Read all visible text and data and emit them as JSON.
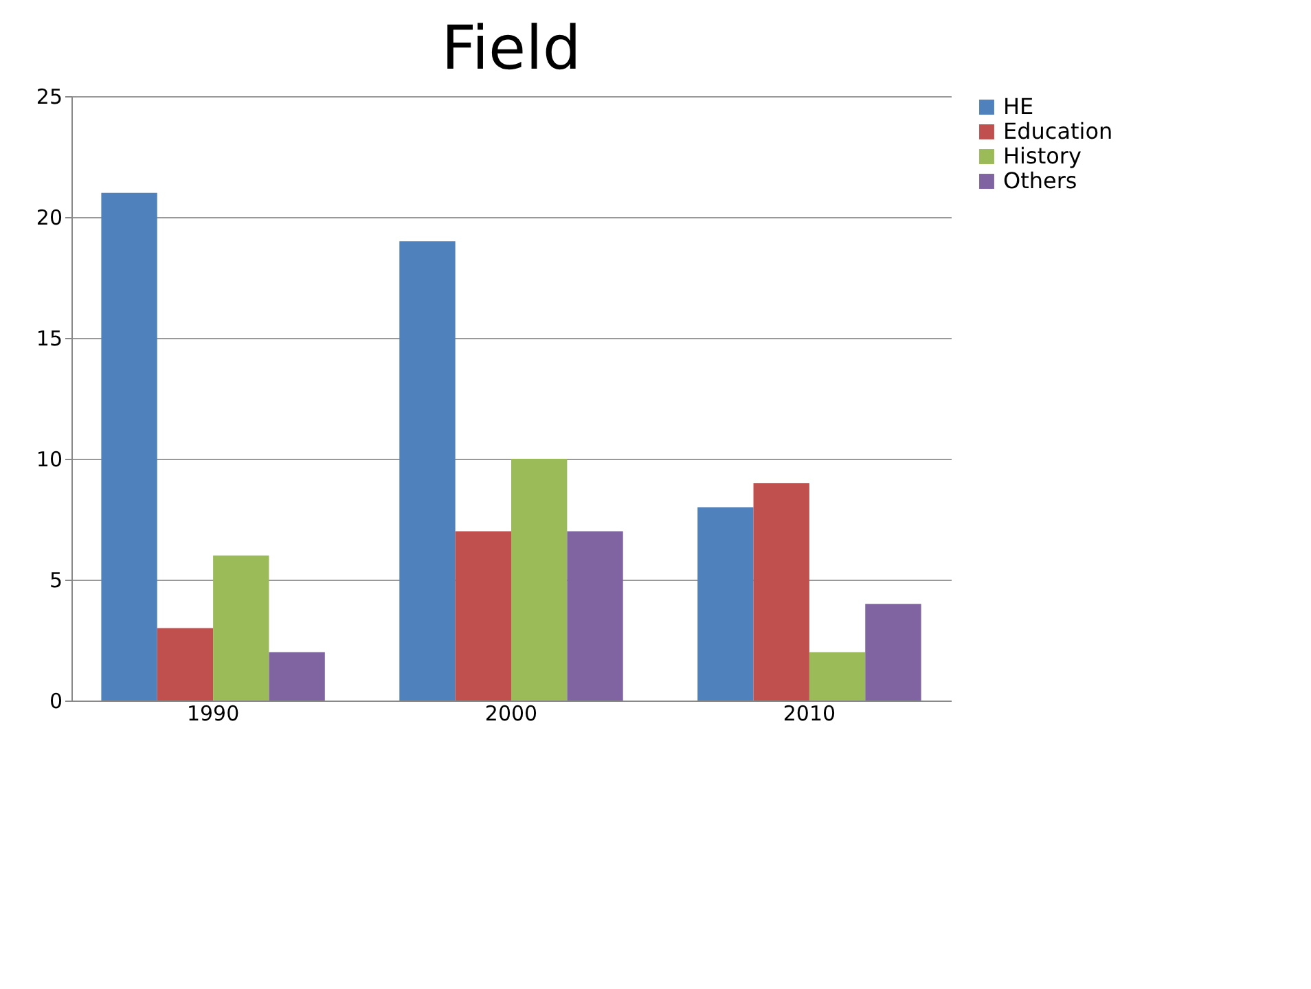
{
  "chart_data": {
    "type": "bar",
    "title": "Field",
    "categories": [
      "1990",
      "2000",
      "2010"
    ],
    "series": [
      {
        "name": "HE",
        "color": "#4f81bd",
        "values": [
          21,
          19,
          8
        ]
      },
      {
        "name": "Education",
        "color": "#c0504d",
        "values": [
          3,
          7,
          9
        ]
      },
      {
        "name": "History",
        "color": "#9bbb59",
        "values": [
          6,
          10,
          2
        ]
      },
      {
        "name": "Others",
        "color": "#8064a2",
        "values": [
          2,
          7,
          4
        ]
      }
    ],
    "ylim": [
      0,
      25
    ],
    "yticks": [
      0,
      5,
      10,
      15,
      20,
      25
    ],
    "grid": "y",
    "legend": "right"
  }
}
